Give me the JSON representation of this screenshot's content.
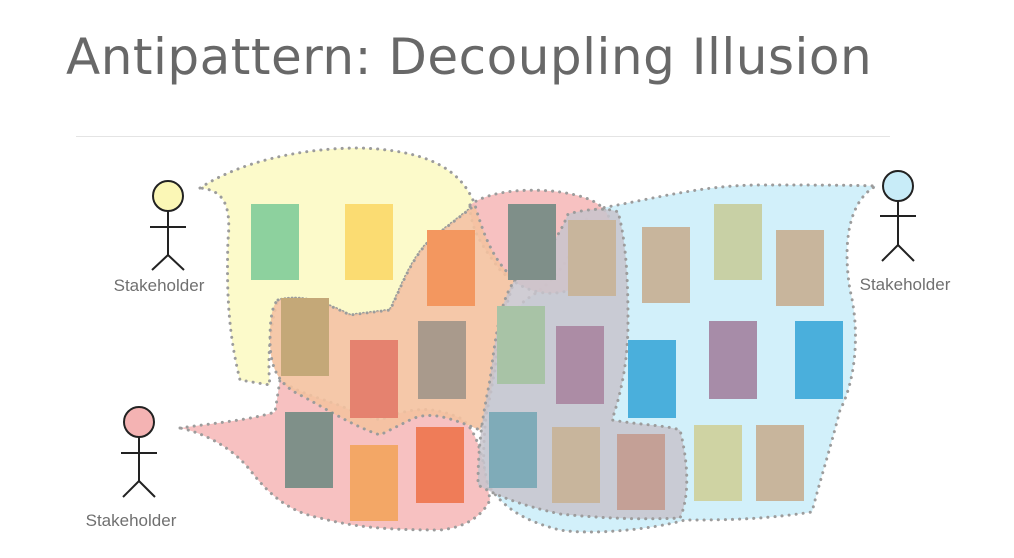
{
  "title": "Antipattern: Decoupling Illusion",
  "stakeholders": [
    {
      "label": "Stakeholder",
      "head_color": "#fbf7b6"
    },
    {
      "label": "Stakeholder",
      "head_color": "#c8ecf8"
    },
    {
      "label": "Stakeholder",
      "head_color": "#f4b3b3"
    }
  ],
  "colors": {
    "region_yellow": "#fcf9c4",
    "region_blue": "#cdeefa",
    "region_red": "#f6baba",
    "region_orange": "#f4c2a0",
    "region_grey": "#c8c4cc",
    "outline": "#9c9c9c"
  }
}
